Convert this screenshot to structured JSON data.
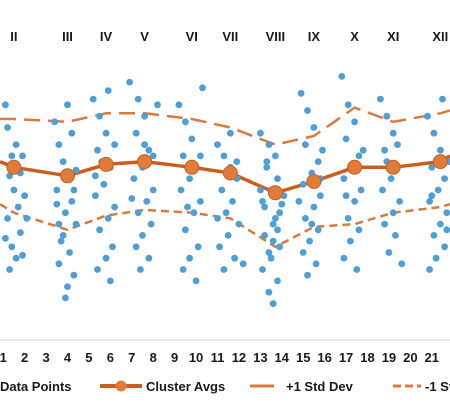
{
  "chart_data": {
    "type": "scatter",
    "x_ticks": [
      "1",
      "2",
      "3",
      "4",
      "5",
      "6",
      "7",
      "8",
      "9",
      "10",
      "11",
      "12",
      "13",
      "14",
      "15",
      "16",
      "17",
      "18",
      "19",
      "20",
      "21"
    ],
    "x_range": [
      0.85,
      21.85
    ],
    "y_range": [
      0,
      100
    ],
    "clusters": [
      "II",
      "III",
      "IV",
      "V",
      "VI",
      "VII",
      "VIII",
      "IX",
      "X",
      "XI",
      "XII"
    ],
    "cluster_centers": [
      1.5,
      4.0,
      5.8,
      7.6,
      9.8,
      11.6,
      13.7,
      15.5,
      17.4,
      19.2,
      21.4
    ],
    "series": [
      {
        "name": "Data Points",
        "color": "#4e9fd6",
        "points": [
          [
            1.1,
            80
          ],
          [
            1.2,
            72
          ],
          [
            1.4,
            62
          ],
          [
            1.3,
            55
          ],
          [
            1.5,
            50
          ],
          [
            1.7,
            44
          ],
          [
            1.2,
            40
          ],
          [
            1.8,
            35
          ],
          [
            1.4,
            30
          ],
          [
            1.6,
            26
          ],
          [
            1.3,
            22
          ],
          [
            1.9,
            62
          ],
          [
            2.0,
            48
          ],
          [
            1.8,
            56
          ],
          [
            2.1,
            40
          ],
          [
            1.1,
            33
          ],
          [
            1.6,
            66
          ],
          [
            1.9,
            27
          ],
          [
            3.4,
            74
          ],
          [
            3.6,
            66
          ],
          [
            3.8,
            60
          ],
          [
            4.0,
            55
          ],
          [
            3.5,
            50
          ],
          [
            4.2,
            46
          ],
          [
            3.9,
            42
          ],
          [
            4.4,
            38
          ],
          [
            3.7,
            32
          ],
          [
            4.1,
            28
          ],
          [
            3.6,
            24
          ],
          [
            4.3,
            20
          ],
          [
            4.0,
            16
          ],
          [
            3.9,
            12
          ],
          [
            3.5,
            45
          ],
          [
            4.4,
            57
          ],
          [
            3.8,
            34
          ],
          [
            4.2,
            70
          ],
          [
            4.0,
            80
          ],
          [
            3.6,
            38
          ],
          [
            4.3,
            50
          ],
          [
            5.2,
            82
          ],
          [
            5.5,
            76
          ],
          [
            5.8,
            70
          ],
          [
            5.4,
            64
          ],
          [
            6.0,
            58
          ],
          [
            5.7,
            52
          ],
          [
            5.3,
            48
          ],
          [
            6.2,
            44
          ],
          [
            5.9,
            40
          ],
          [
            5.5,
            36
          ],
          [
            6.1,
            30
          ],
          [
            5.8,
            26
          ],
          [
            5.4,
            22
          ],
          [
            6.0,
            18
          ],
          [
            5.6,
            60
          ],
          [
            6.2,
            66
          ],
          [
            5.3,
            55
          ],
          [
            5.9,
            85
          ],
          [
            6.9,
            88
          ],
          [
            7.3,
            82
          ],
          [
            7.6,
            76
          ],
          [
            7.2,
            70
          ],
          [
            7.8,
            64
          ],
          [
            7.5,
            58
          ],
          [
            7.1,
            54
          ],
          [
            8.0,
            50
          ],
          [
            7.7,
            46
          ],
          [
            7.3,
            42
          ],
          [
            7.9,
            38
          ],
          [
            7.5,
            34
          ],
          [
            7.2,
            30
          ],
          [
            7.8,
            26
          ],
          [
            7.4,
            22
          ],
          [
            8.2,
            80
          ],
          [
            8.0,
            62
          ],
          [
            7.0,
            47
          ],
          [
            7.6,
            66
          ],
          [
            9.2,
            80
          ],
          [
            9.5,
            74
          ],
          [
            9.8,
            68
          ],
          [
            9.4,
            62
          ],
          [
            10.0,
            58
          ],
          [
            9.7,
            54
          ],
          [
            9.3,
            50
          ],
          [
            10.2,
            46
          ],
          [
            9.9,
            42
          ],
          [
            9.5,
            36
          ],
          [
            10.1,
            30
          ],
          [
            9.7,
            26
          ],
          [
            9.4,
            22
          ],
          [
            10.0,
            18
          ],
          [
            10.3,
            86
          ],
          [
            9.6,
            44
          ],
          [
            10.2,
            62
          ],
          [
            11.0,
            66
          ],
          [
            11.3,
            62
          ],
          [
            11.6,
            58
          ],
          [
            11.9,
            54
          ],
          [
            11.2,
            50
          ],
          [
            11.7,
            46
          ],
          [
            11.4,
            42
          ],
          [
            12.0,
            38
          ],
          [
            11.5,
            34
          ],
          [
            11.1,
            30
          ],
          [
            11.8,
            26
          ],
          [
            11.3,
            22
          ],
          [
            11.9,
            60
          ],
          [
            11.6,
            70
          ],
          [
            12.2,
            24
          ],
          [
            11.0,
            40
          ],
          [
            13.0,
            70
          ],
          [
            13.4,
            66
          ],
          [
            13.7,
            62
          ],
          [
            13.3,
            58
          ],
          [
            13.8,
            54
          ],
          [
            13.5,
            50
          ],
          [
            13.1,
            46
          ],
          [
            13.9,
            42
          ],
          [
            13.6,
            38
          ],
          [
            13.2,
            34
          ],
          [
            13.9,
            30
          ],
          [
            13.5,
            26
          ],
          [
            13.1,
            22
          ],
          [
            13.8,
            18
          ],
          [
            13.4,
            14
          ],
          [
            13.6,
            10
          ],
          [
            13.0,
            50
          ],
          [
            14.0,
            45
          ],
          [
            13.7,
            40
          ],
          [
            13.2,
            44
          ],
          [
            13.8,
            36
          ],
          [
            13.4,
            28
          ],
          [
            14.1,
            48
          ],
          [
            13.3,
            60
          ],
          [
            13.6,
            32
          ],
          [
            14.9,
            84
          ],
          [
            15.2,
            78
          ],
          [
            15.5,
            72
          ],
          [
            15.1,
            66
          ],
          [
            15.7,
            60
          ],
          [
            15.4,
            56
          ],
          [
            15.0,
            52
          ],
          [
            15.8,
            48
          ],
          [
            15.5,
            44
          ],
          [
            15.1,
            40
          ],
          [
            15.7,
            36
          ],
          [
            15.3,
            32
          ],
          [
            15.0,
            28
          ],
          [
            15.6,
            24
          ],
          [
            15.2,
            20
          ],
          [
            15.9,
            64
          ],
          [
            14.8,
            46
          ],
          [
            15.4,
            38
          ],
          [
            15.8,
            54
          ],
          [
            16.8,
            90
          ],
          [
            17.1,
            80
          ],
          [
            17.4,
            74
          ],
          [
            17.0,
            68
          ],
          [
            17.6,
            62
          ],
          [
            17.3,
            58
          ],
          [
            16.9,
            54
          ],
          [
            17.7,
            50
          ],
          [
            17.4,
            46
          ],
          [
            17.1,
            40
          ],
          [
            17.6,
            36
          ],
          [
            17.2,
            32
          ],
          [
            16.9,
            26
          ],
          [
            17.5,
            22
          ],
          [
            17.8,
            64
          ],
          [
            17.0,
            48
          ],
          [
            18.6,
            82
          ],
          [
            18.9,
            76
          ],
          [
            19.2,
            70
          ],
          [
            18.8,
            64
          ],
          [
            19.4,
            58
          ],
          [
            19.1,
            54
          ],
          [
            18.7,
            50
          ],
          [
            19.5,
            46
          ],
          [
            19.2,
            42
          ],
          [
            18.8,
            38
          ],
          [
            19.3,
            34
          ],
          [
            19.0,
            28
          ],
          [
            19.6,
            24
          ],
          [
            18.9,
            60
          ],
          [
            19.4,
            66
          ],
          [
            20.8,
            76
          ],
          [
            21.1,
            70
          ],
          [
            21.4,
            64
          ],
          [
            21.0,
            58
          ],
          [
            21.6,
            54
          ],
          [
            21.3,
            50
          ],
          [
            20.9,
            46
          ],
          [
            21.7,
            42
          ],
          [
            21.4,
            38
          ],
          [
            21.1,
            34
          ],
          [
            21.6,
            30
          ],
          [
            21.2,
            26
          ],
          [
            20.9,
            22
          ],
          [
            21.5,
            82
          ],
          [
            21.8,
            60
          ],
          [
            21.0,
            48
          ],
          [
            21.7,
            36
          ]
        ]
      },
      {
        "name": "Cluster Avgs",
        "color": "#c95f1f",
        "x": [
          0.85,
          1.5,
          4.0,
          5.8,
          7.6,
          9.8,
          11.6,
          13.7,
          15.5,
          17.4,
          19.2,
          21.4,
          21.85
        ],
        "y": [
          60,
          58,
          55,
          59,
          60,
          58,
          56,
          49,
          53,
          58,
          58,
          60,
          62
        ]
      },
      {
        "name": "+1 Std Dev",
        "color": "#d97a3e",
        "x": [
          0.85,
          1.5,
          4.0,
          5.8,
          7.6,
          9.8,
          11.6,
          13.7,
          15.5,
          17.4,
          19.2,
          21.4,
          21.85
        ],
        "y": [
          75,
          75,
          74,
          77,
          77,
          75,
          72,
          66,
          69,
          79,
          74,
          77,
          78
        ]
      },
      {
        "name": "-1 Std Dev",
        "color": "#d97a3e",
        "x": [
          0.85,
          1.5,
          4.0,
          5.8,
          7.6,
          9.8,
          11.6,
          13.7,
          15.5,
          17.4,
          19.2,
          21.4,
          21.85
        ],
        "y": [
          45,
          42,
          36,
          41,
          43,
          42,
          40,
          30,
          37,
          38,
          42,
          44,
          45
        ]
      }
    ],
    "legend": [
      "Data Points",
      "Cluster Avgs",
      "+1 Std Dev",
      "-1 St"
    ],
    "legend_position": "bottom",
    "grid": false
  }
}
